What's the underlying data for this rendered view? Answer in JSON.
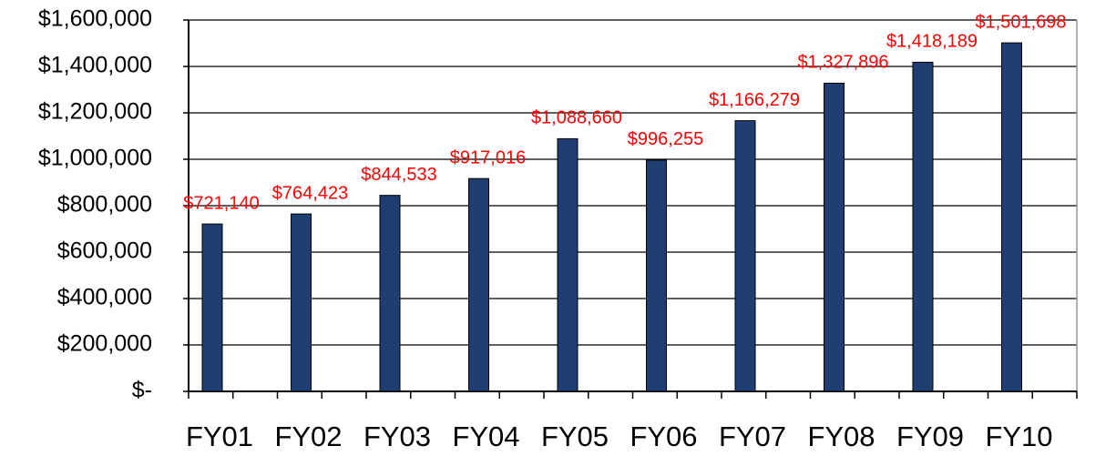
{
  "chart_data": {
    "type": "bar",
    "categories": [
      "FY01",
      "FY02",
      "FY03",
      "FY04",
      "FY05",
      "FY06",
      "FY07",
      "FY08",
      "FY09",
      "FY10"
    ],
    "values": [
      721140,
      764423,
      844533,
      917016,
      1088660,
      996255,
      1166279,
      1327896,
      1418189,
      1501698
    ],
    "value_labels": [
      "$721,140",
      "$764,423",
      "$844,533",
      "$917,016",
      "$1,088,660",
      "$996,255",
      "$1,166,279",
      "$1,327,896",
      "$1,418,189",
      "$1,501,698"
    ],
    "color": "#1f3f73",
    "label_color": "#ff0000",
    "ylim": [
      0,
      1600000
    ],
    "yticks": [
      {
        "value": 0,
        "label": "$-"
      },
      {
        "value": 200000,
        "label": "$200,000"
      },
      {
        "value": 400000,
        "label": "$400,000"
      },
      {
        "value": 600000,
        "label": "$600,000"
      },
      {
        "value": 800000,
        "label": "$800,000"
      },
      {
        "value": 1000000,
        "label": "$1,000,000"
      },
      {
        "value": 1200000,
        "label": "$1,200,000"
      },
      {
        "value": 1400000,
        "label": "$1,400,000"
      },
      {
        "value": 1600000,
        "label": "$1,600,000"
      }
    ],
    "grid": true
  }
}
